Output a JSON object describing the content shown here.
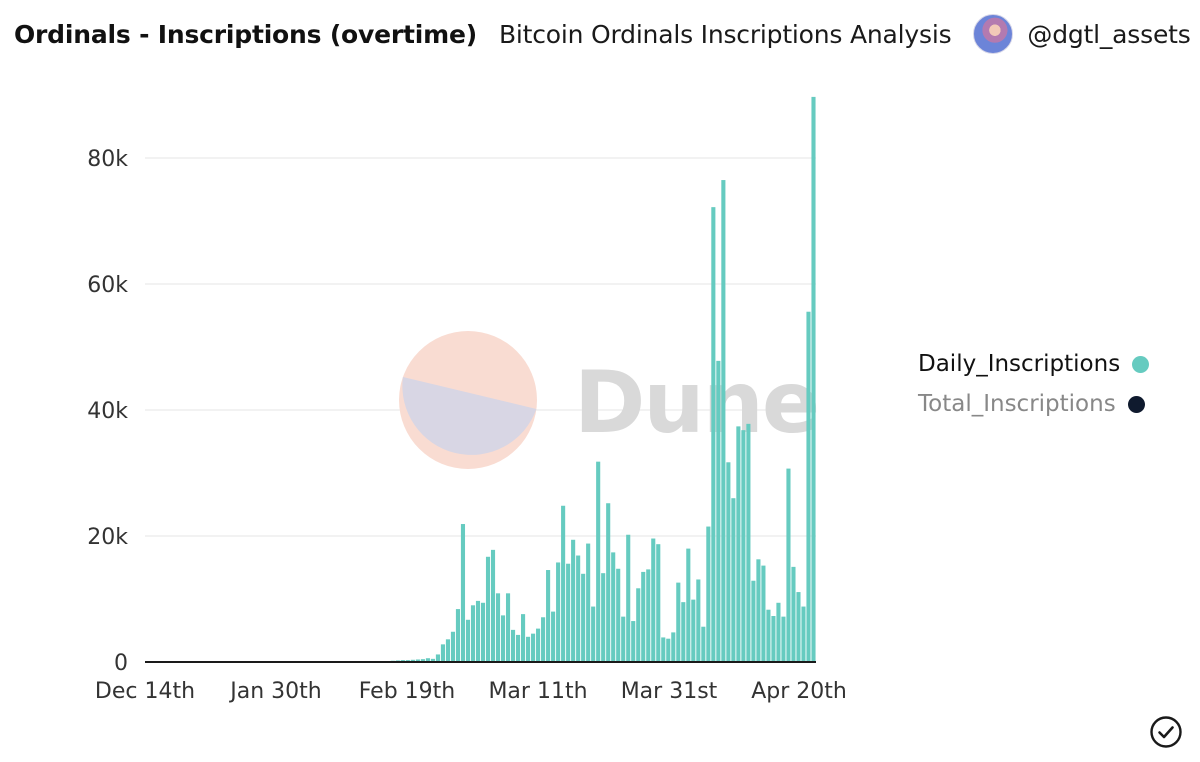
{
  "header": {
    "title": "Ordinals - Inscriptions (overtime)",
    "subtitle": "Bitcoin Ordinals Inscriptions Analysis",
    "author": "@dgtl_assets"
  },
  "watermark": "Dune",
  "colors": {
    "daily": "#66cbc0",
    "total": "#0f1a2e",
    "grid": "#e6e6e6",
    "watermark_text": "#d9d9d9",
    "watermark_top": "#f9dcd2",
    "watermark_bottom": "#d8d6e4"
  },
  "legend": [
    {
      "label": "Daily_Inscriptions",
      "color": "#66cbc0",
      "active": true
    },
    {
      "label": "Total_Inscriptions",
      "color": "#0f1a2e",
      "active": false
    }
  ],
  "icons": {
    "check": "check-circle-icon"
  },
  "chart_data": {
    "type": "bar",
    "title": "Ordinals - Inscriptions (overtime)",
    "x_start": "2022-12-14",
    "xtick_labels": [
      "Dec 14th",
      "Jan 30th",
      "Feb 19th",
      "Mar 11th",
      "Mar 31st",
      "Apr 20th"
    ],
    "ytick_labels": [
      "0",
      "20k",
      "40k",
      "60k",
      "80k"
    ],
    "ylim": [
      0,
      90000
    ],
    "grid": true,
    "legend_position": "right",
    "series": [
      {
        "name": "Daily_Inscriptions",
        "values": [
          1,
          0,
          0,
          0,
          0,
          0,
          0,
          0,
          0,
          0,
          0,
          0,
          0,
          0,
          0,
          0,
          0,
          0,
          0,
          0,
          0,
          0,
          0,
          0,
          0,
          0,
          0,
          0,
          0,
          0,
          0,
          0,
          0,
          0,
          0,
          0,
          0,
          0,
          0,
          0,
          0,
          0,
          0,
          0,
          0,
          0,
          0,
          0,
          0,
          200,
          250,
          300,
          300,
          350,
          400,
          450,
          600,
          500,
          1200,
          2800,
          3600,
          4800,
          8400,
          21900,
          6700,
          9000,
          9700,
          9400,
          16700,
          17800,
          10900,
          7400,
          10900,
          5100,
          4300,
          7600,
          4000,
          4500,
          5300,
          7100,
          14600,
          8000,
          15800,
          24800,
          15600,
          19400,
          16900,
          14000,
          18800,
          8800,
          31800,
          14100,
          25200,
          17400,
          14800,
          7200,
          20200,
          6500,
          11700,
          14300,
          14700,
          19600,
          18700,
          3900,
          3700,
          4700,
          12600,
          9500,
          18000,
          9900,
          13100,
          5600,
          21500,
          72200,
          47800,
          76500,
          31700,
          26000,
          37400,
          36800,
          37800,
          12900,
          16300,
          15300,
          8300,
          7300,
          9400,
          7200,
          30700,
          15100,
          11100,
          8800,
          55600,
          89700
        ]
      },
      {
        "name": "Total_Inscriptions",
        "values": []
      }
    ]
  }
}
